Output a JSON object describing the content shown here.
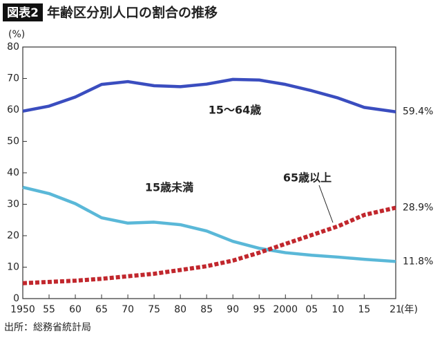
{
  "chart_data": {
    "type": "line",
    "badge": "図表2",
    "title": "年齢区分別人口の割合の推移",
    "y_label": "(%)",
    "x_label": "(年)",
    "source": "出所：総務省統計局",
    "x": [
      1950,
      1955,
      1960,
      1965,
      1970,
      1975,
      1980,
      1985,
      1990,
      1995,
      2000,
      2005,
      2010,
      2015,
      2021
    ],
    "xlim": [
      1950,
      2021
    ],
    "xticks": [
      {
        "value": 1950,
        "label": "1950"
      },
      {
        "value": 1955,
        "label": "55"
      },
      {
        "value": 1960,
        "label": "60"
      },
      {
        "value": 1965,
        "label": "65"
      },
      {
        "value": 1970,
        "label": "70"
      },
      {
        "value": 1975,
        "label": "75"
      },
      {
        "value": 1980,
        "label": "80"
      },
      {
        "value": 1985,
        "label": "85"
      },
      {
        "value": 1990,
        "label": "90"
      },
      {
        "value": 1995,
        "label": "95"
      },
      {
        "value": 2000,
        "label": "2000"
      },
      {
        "value": 2005,
        "label": "05"
      },
      {
        "value": 2010,
        "label": "10"
      },
      {
        "value": 2015,
        "label": "15"
      },
      {
        "value": 2021,
        "label": "21"
      }
    ],
    "ylim": [
      0,
      80
    ],
    "yticks": [
      0,
      10,
      20,
      30,
      40,
      50,
      60,
      70,
      80
    ],
    "series": [
      {
        "name": "15～64歳",
        "color": "#3a4dbf",
        "style": "solid",
        "values": [
          59.6,
          61.2,
          64.1,
          68.1,
          69.0,
          67.7,
          67.4,
          68.2,
          69.7,
          69.5,
          68.1,
          66.1,
          63.8,
          60.8,
          59.4
        ],
        "value_labels": [
          null,
          null,
          null,
          null,
          null,
          null,
          null,
          null,
          null,
          null,
          null,
          null,
          null,
          null,
          "59.4%"
        ]
      },
      {
        "name": "15歳未満",
        "color": "#5ab8d8",
        "style": "solid",
        "values": [
          35.4,
          33.4,
          30.2,
          25.7,
          24.0,
          24.3,
          23.5,
          21.5,
          18.2,
          16.0,
          14.6,
          13.8,
          13.2,
          12.5,
          11.8
        ],
        "value_labels": [
          null,
          null,
          null,
          null,
          null,
          null,
          null,
          null,
          null,
          null,
          null,
          null,
          null,
          null,
          "11.8%"
        ]
      },
      {
        "name": "65歳以上",
        "color": "#c1272d",
        "style": "dashed",
        "values": [
          4.9,
          5.3,
          5.7,
          6.3,
          7.1,
          7.9,
          9.1,
          10.3,
          12.1,
          14.6,
          17.4,
          20.2,
          23.0,
          26.6,
          28.9
        ],
        "value_labels": [
          null,
          null,
          null,
          null,
          null,
          null,
          null,
          null,
          null,
          null,
          null,
          null,
          null,
          null,
          "28.9%"
        ]
      }
    ]
  }
}
